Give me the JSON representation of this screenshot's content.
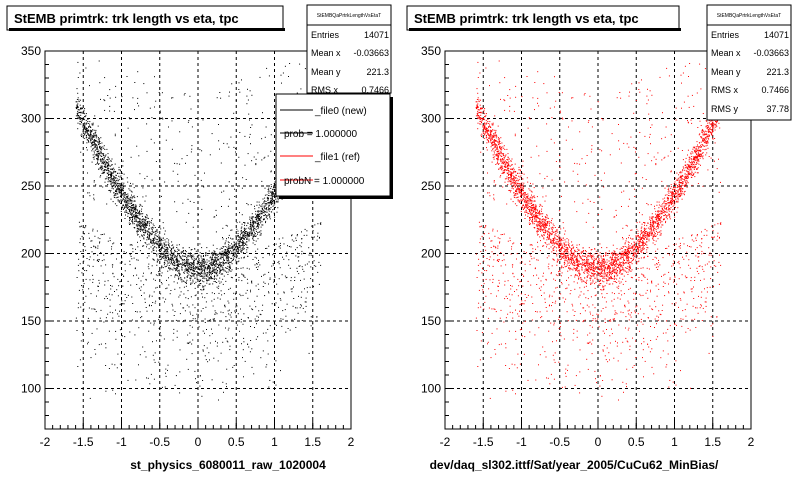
{
  "footer_text": "",
  "chart_data": [
    {
      "type": "scatter",
      "title": "StEMB primtrk: trk length vs eta, tpc",
      "xlabel": "st_physics_6080011_raw_1020004",
      "ylabel": "",
      "xlim": [
        -2,
        2
      ],
      "ylim": [
        70,
        350
      ],
      "x_ticks": [
        "-2",
        "-1.5",
        "-1",
        "-0.5",
        "0",
        "0.5",
        "1",
        "1.5",
        "2"
      ],
      "y_ticks": [
        "100",
        "150",
        "200",
        "250",
        "300",
        "350"
      ],
      "grid": true,
      "color": "#000000",
      "stats": {
        "title": "StEMBQaPrtrkLengthVsEtaT",
        "rows": [
          {
            "label": "Entries",
            "value": "14071"
          },
          {
            "label": "Mean x",
            "value": "-0.03663"
          },
          {
            "label": "Mean y",
            "value": "221.3"
          },
          {
            "label": "RMS x",
            "value": "0.7466"
          }
        ]
      },
      "legend": {
        "placement": "top-right",
        "entries": [
          {
            "label": "_file0 (new)",
            "color": "#000000"
          },
          {
            "label": "prob = 1.000000",
            "color": "#000000"
          },
          {
            "label": "_file1 (ref)",
            "color": "#ff0000"
          },
          {
            "label": "probN = 1.000000",
            "color": "#ff0000"
          }
        ]
      },
      "distribution": {
        "band_core_length": 190,
        "band_edge_length": 320,
        "eta_min": -1.6,
        "eta_max": 1.6,
        "n_points": 14071
      }
    },
    {
      "type": "scatter",
      "title": "StEMB primtrk: trk length vs eta, tpc",
      "xlabel": "dev/daq_sl302.ittf/Sat/year_2005/CuCu62_MinBias/",
      "ylabel": "",
      "xlim": [
        -2,
        2
      ],
      "ylim": [
        70,
        350
      ],
      "x_ticks": [
        "-2",
        "-1.5",
        "-1",
        "-0.5",
        "0",
        "0.5",
        "1",
        "1.5",
        "2"
      ],
      "y_ticks": [
        "100",
        "150",
        "200",
        "250",
        "300",
        "350"
      ],
      "grid": true,
      "color": "#ff0000",
      "stats": {
        "title": "StEMBQaPrtrkLengthVsEtaT",
        "rows": [
          {
            "label": "Entries",
            "value": "14071"
          },
          {
            "label": "Mean x",
            "value": "-0.03663"
          },
          {
            "label": "Mean y",
            "value": "221.3"
          },
          {
            "label": "RMS x",
            "value": "0.7466"
          },
          {
            "label": "RMS y",
            "value": "37.78"
          }
        ]
      },
      "legend": null,
      "distribution": {
        "band_core_length": 190,
        "band_edge_length": 320,
        "eta_min": -1.6,
        "eta_max": 1.6,
        "n_points": 14071
      }
    }
  ]
}
